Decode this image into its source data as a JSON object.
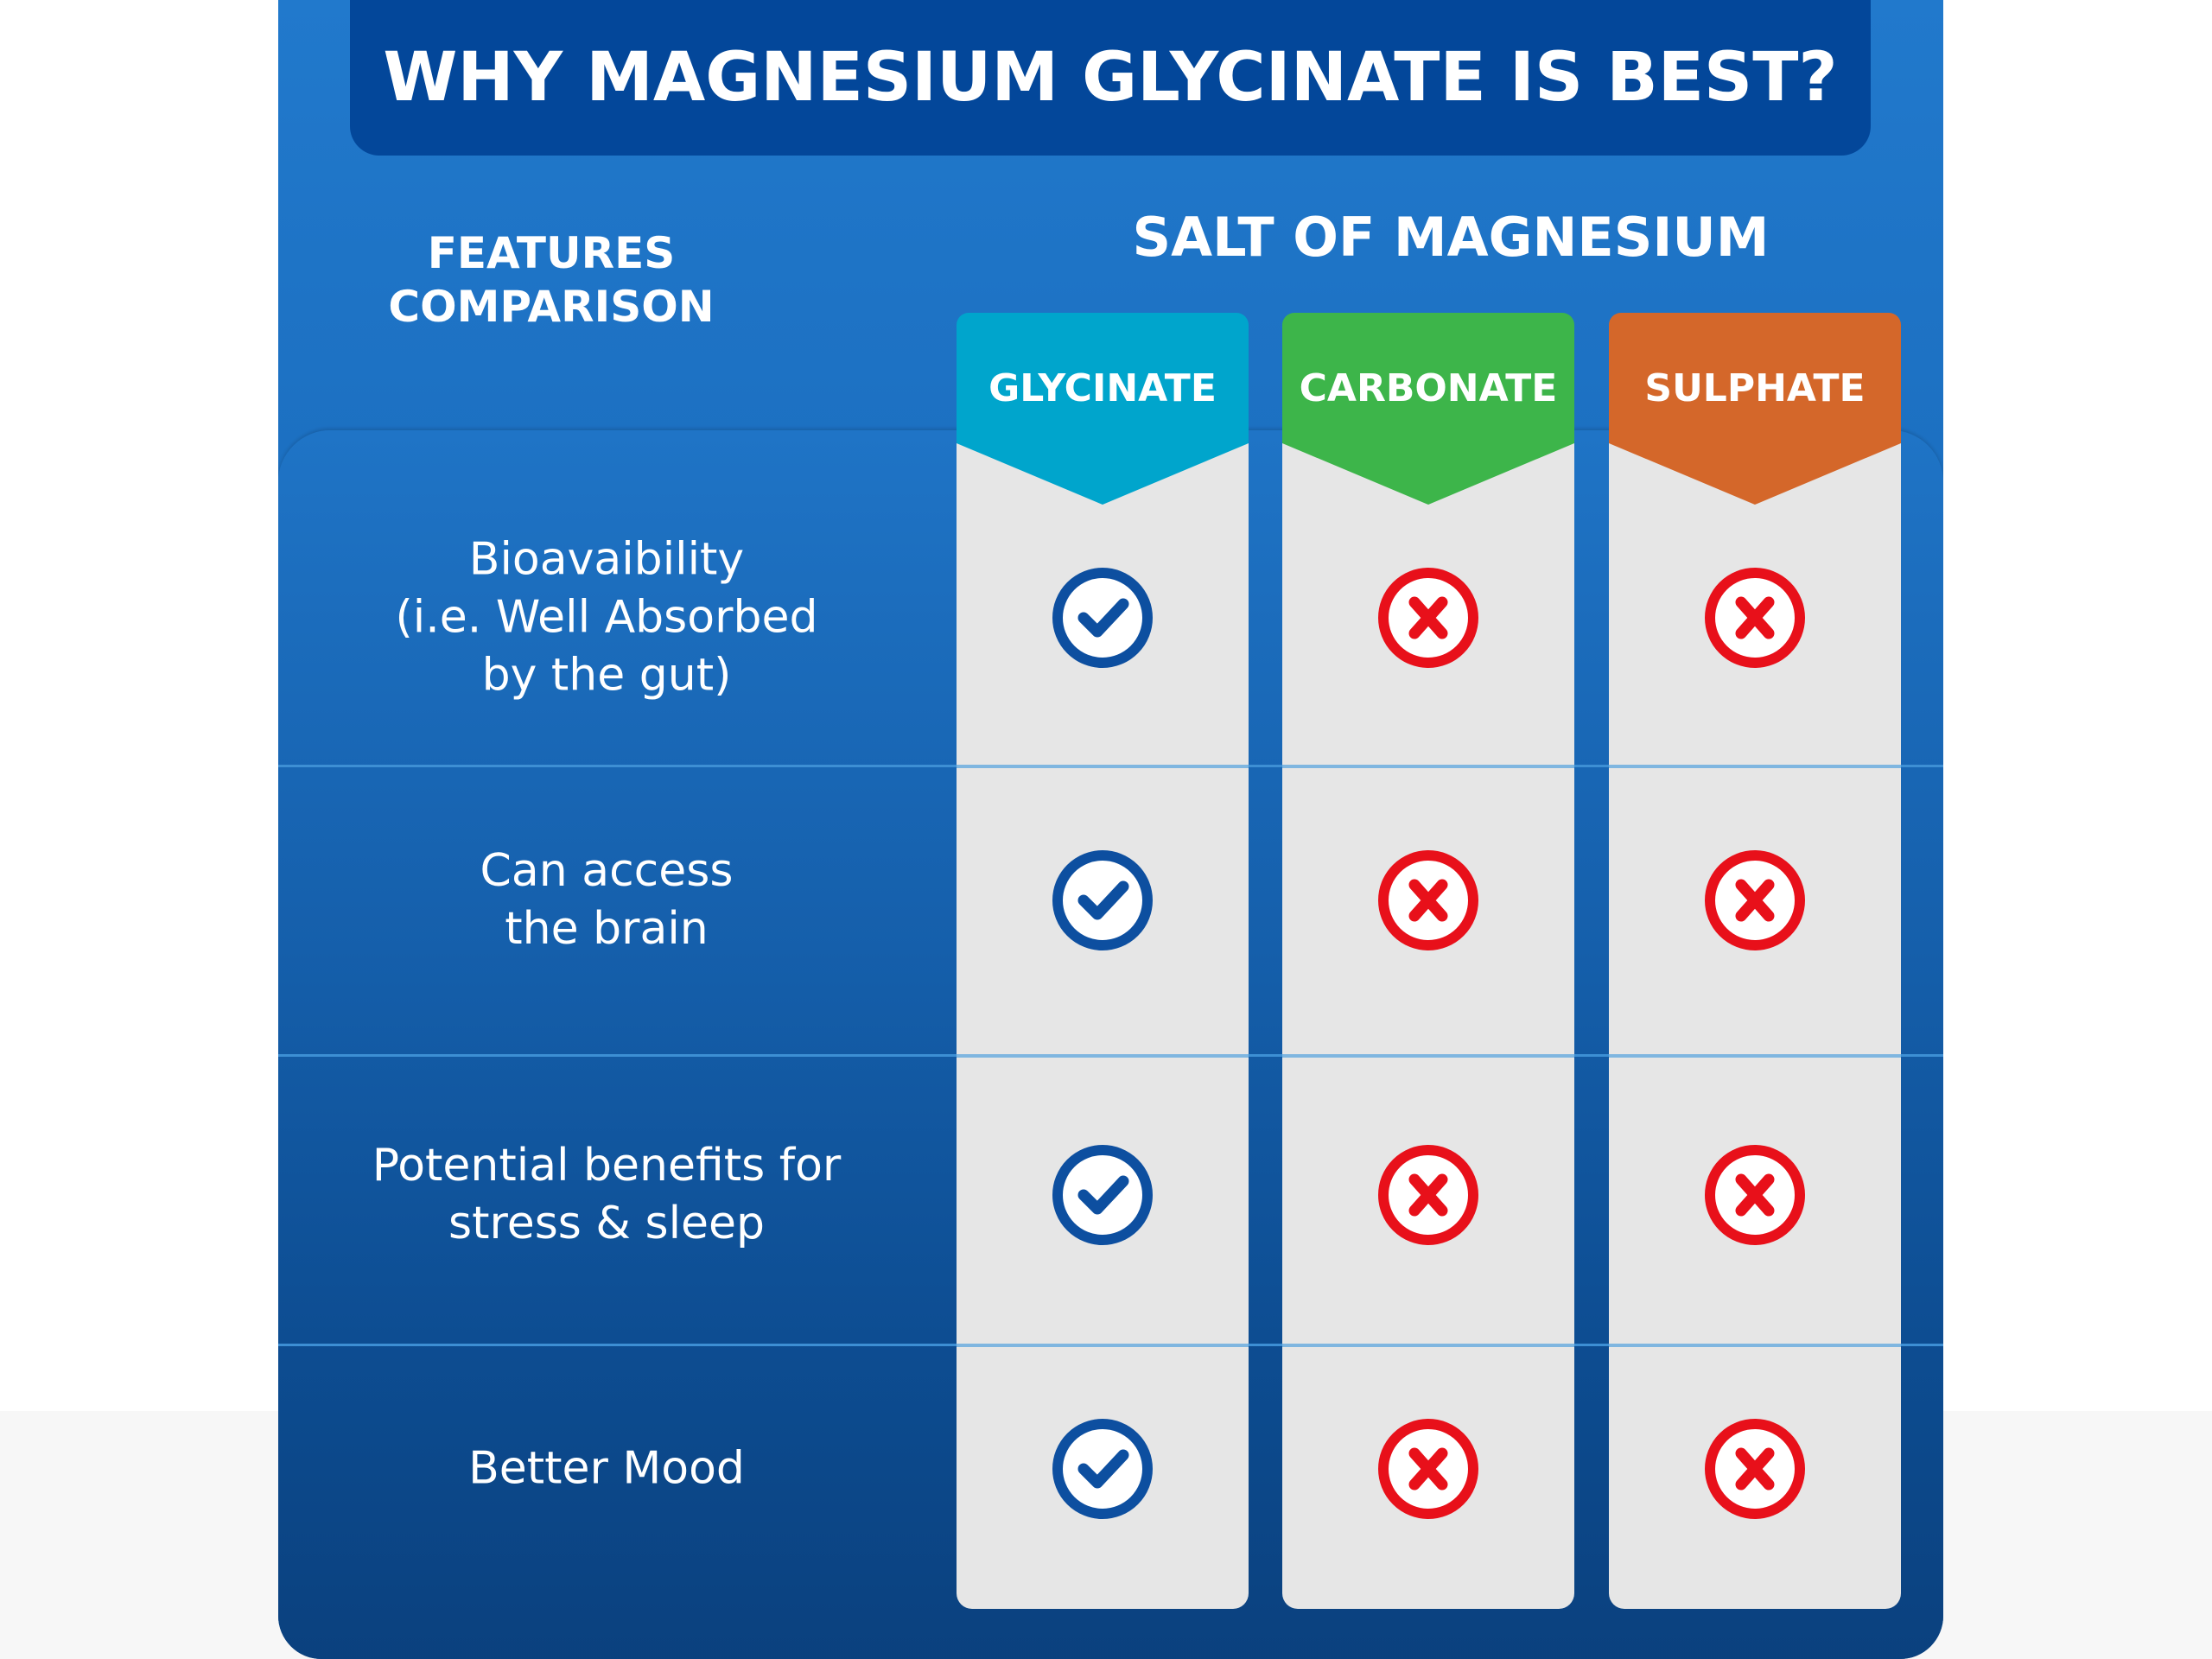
{
  "title": "WHY MAGNESIUM GLYCINATE IS BEST?",
  "features_label": [
    "FEATURES",
    "COMPARISON"
  ],
  "salt_heading": "SALT OF MAGNESIUM",
  "columns": [
    {
      "label": "GLYCINATE",
      "color": "#00a5cc"
    },
    {
      "label": "CARBONATE",
      "color": "#3db54a"
    },
    {
      "label": "SULPHATE",
      "color": "#d4672a"
    }
  ],
  "rows": [
    {
      "lines": [
        "Bioavaibility",
        "(i.e. Well Absorbed",
        "by the gut)"
      ],
      "values": [
        "check",
        "cross",
        "cross"
      ]
    },
    {
      "lines": [
        "Can access",
        "the brain"
      ],
      "values": [
        "check",
        "cross",
        "cross"
      ]
    },
    {
      "lines": [
        "Potential benefits for",
        "stress & sleep"
      ],
      "values": [
        "check",
        "cross",
        "cross"
      ]
    },
    {
      "lines": [
        "Better Mood"
      ],
      "values": [
        "check",
        "cross",
        "cross"
      ]
    }
  ],
  "colors": {
    "check": "#0d4fa0",
    "cross": "#e8101a",
    "card_top": "#2179cc",
    "card_bottom": "#0a3e7a",
    "banner": "#03479a"
  }
}
